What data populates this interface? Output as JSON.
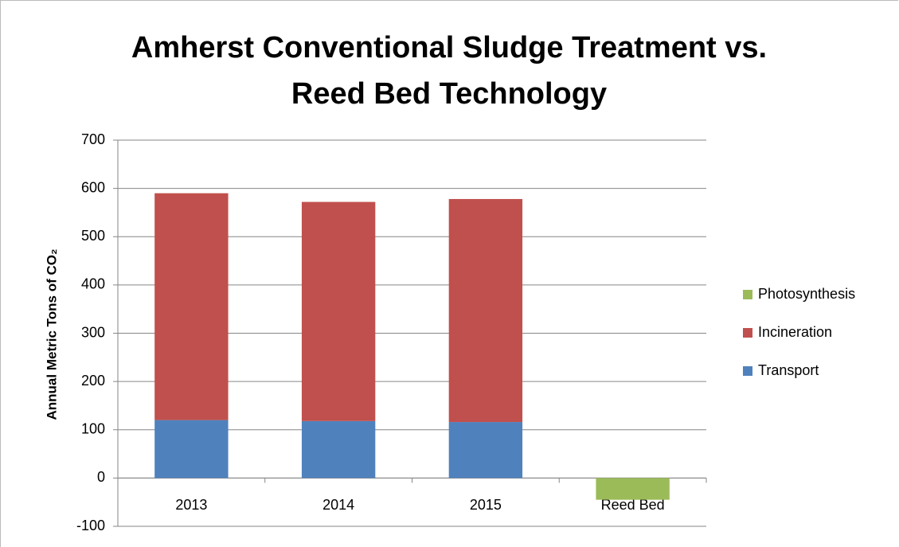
{
  "chart_data": {
    "type": "stacked_bar",
    "title": "Amherst Conventional Sludge Treatment vs. Reed Bed Technology",
    "y_label": "Annual Metric Tons of CO₂",
    "categories": [
      "2013",
      "2014",
      "2015",
      "Reed Bed"
    ],
    "series": [
      {
        "name": "Transport",
        "color": "#4f81bd",
        "values": [
          120,
          118,
          116,
          null
        ]
      },
      {
        "name": "Incineration",
        "color": "#c0504d",
        "values": [
          470,
          454,
          462,
          null
        ]
      },
      {
        "name": "Photosynthesis",
        "color": "#9bbb59",
        "values": [
          null,
          null,
          null,
          -45
        ]
      }
    ],
    "ylim": [
      -100,
      700
    ],
    "yticks": [
      -100,
      0,
      100,
      200,
      300,
      400,
      500,
      600,
      700
    ],
    "grid": true,
    "legend": "right"
  }
}
